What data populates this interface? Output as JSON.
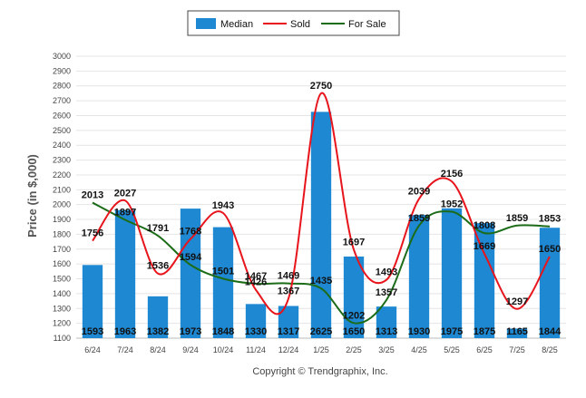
{
  "chart_data": {
    "type": "bar",
    "title": "",
    "xlabel": "",
    "ylabel": "Price (in $,000)",
    "ylim": [
      1100,
      3000
    ],
    "yticks": [
      1100,
      1200,
      1300,
      1400,
      1500,
      1600,
      1700,
      1800,
      1900,
      2000,
      2100,
      2200,
      2300,
      2400,
      2500,
      2600,
      2700,
      2800,
      2900,
      3000
    ],
    "grid": true,
    "legend": "top-center",
    "categories": [
      "6/24",
      "7/24",
      "8/24",
      "9/24",
      "10/24",
      "11/24",
      "12/24",
      "1/25",
      "2/25",
      "3/25",
      "4/25",
      "5/25",
      "6/25",
      "7/25",
      "8/25"
    ],
    "series": [
      {
        "name": "Median",
        "kind": "bar",
        "color": "#1e88d2",
        "values": [
          1593,
          1963,
          1382,
          1973,
          1848,
          1330,
          1317,
          2625,
          1650,
          1313,
          1930,
          1975,
          1875,
          1165,
          1844
        ]
      },
      {
        "name": "Sold",
        "kind": "line",
        "color": "#e8141b",
        "values": [
          1756,
          2027,
          1536,
          1768,
          1943,
          1426,
          1367,
          2750,
          1697,
          1493,
          2039,
          2156,
          1669,
          1297,
          1650
        ]
      },
      {
        "name": "For Sale",
        "kind": "line",
        "color": "#1b6b17",
        "values": [
          2013,
          1897,
          1791,
          1594,
          1501,
          1467,
          1469,
          1435,
          1202,
          1357,
          1859,
          1952,
          1808,
          1859,
          1853
        ]
      }
    ],
    "credit": "Copyright © Trendgraphix, Inc."
  }
}
